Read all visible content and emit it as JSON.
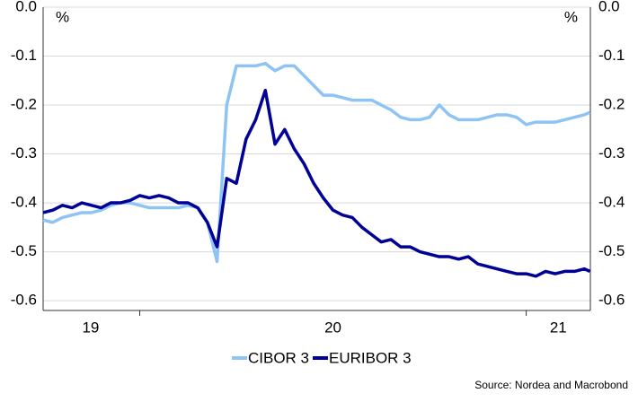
{
  "chart_data": {
    "type": "line",
    "y_unit_label": "%",
    "y2_unit_label": "%",
    "source": "Source: Nordea and Macrobond",
    "xlim": [
      19.75,
      21.166
    ],
    "xticks": [
      20,
      21
    ],
    "xtick_labels": [
      {
        "value": 19.873,
        "label": "19"
      },
      {
        "value": 20.5,
        "label": "20"
      },
      {
        "value": 21.083,
        "label": "21"
      }
    ],
    "ylim": [
      -0.62,
      0
    ],
    "yticks": [
      {
        "value": 0,
        "label": "0.0"
      },
      -0.1,
      -0.2,
      -0.3,
      -0.4,
      -0.5,
      -0.6
    ],
    "y2lim": [
      -0.62,
      0
    ],
    "y2ticks": [
      {
        "value": 0,
        "label": "0.0"
      },
      -0.1,
      -0.2,
      -0.3,
      -0.4,
      -0.5,
      -0.6
    ],
    "grid": true,
    "legend": "bottom",
    "x": [
      19.75,
      19.775,
      19.8,
      19.825,
      19.85,
      19.875,
      19.9,
      19.925,
      19.95,
      19.975,
      20.0,
      20.025,
      20.05,
      20.075,
      20.1,
      20.125,
      20.15,
      20.175,
      20.2,
      20.225,
      20.25,
      20.275,
      20.3,
      20.325,
      20.35,
      20.375,
      20.4,
      20.425,
      20.45,
      20.475,
      20.5,
      20.525,
      20.55,
      20.575,
      20.6,
      20.625,
      20.65,
      20.675,
      20.7,
      20.725,
      20.75,
      20.775,
      20.8,
      20.825,
      20.85,
      20.875,
      20.9,
      20.925,
      20.95,
      20.975,
      21.0,
      21.025,
      21.05,
      21.075,
      21.1,
      21.125,
      21.15,
      21.165
    ],
    "series": [
      {
        "name": "CIBOR 3",
        "color": "#8ec4f4",
        "values": [
          -0.435,
          -0.44,
          -0.43,
          -0.425,
          -0.42,
          -0.42,
          -0.415,
          -0.405,
          -0.4,
          -0.4,
          -0.405,
          -0.41,
          -0.41,
          -0.41,
          -0.41,
          -0.405,
          -0.41,
          -0.44,
          -0.52,
          -0.2,
          -0.12,
          -0.12,
          -0.12,
          -0.115,
          -0.13,
          -0.12,
          -0.12,
          -0.14,
          -0.16,
          -0.18,
          -0.18,
          -0.185,
          -0.19,
          -0.19,
          -0.19,
          -0.2,
          -0.21,
          -0.225,
          -0.23,
          -0.23,
          -0.225,
          -0.2,
          -0.22,
          -0.23,
          -0.23,
          -0.23,
          -0.225,
          -0.22,
          -0.22,
          -0.225,
          -0.24,
          -0.235,
          -0.235,
          -0.235,
          -0.23,
          -0.225,
          -0.22,
          -0.215
        ]
      },
      {
        "name": "EURIBOR 3",
        "color": "#000096",
        "values": [
          -0.42,
          -0.415,
          -0.405,
          -0.41,
          -0.4,
          -0.405,
          -0.41,
          -0.4,
          -0.4,
          -0.395,
          -0.385,
          -0.39,
          -0.385,
          -0.39,
          -0.4,
          -0.4,
          -0.41,
          -0.44,
          -0.49,
          -0.35,
          -0.36,
          -0.27,
          -0.23,
          -0.17,
          -0.28,
          -0.25,
          -0.29,
          -0.32,
          -0.36,
          -0.39,
          -0.415,
          -0.425,
          -0.43,
          -0.45,
          -0.465,
          -0.48,
          -0.475,
          -0.49,
          -0.49,
          -0.5,
          -0.505,
          -0.51,
          -0.51,
          -0.515,
          -0.51,
          -0.525,
          -0.53,
          -0.535,
          -0.54,
          -0.545,
          -0.545,
          -0.55,
          -0.54,
          -0.545,
          -0.54,
          -0.54,
          -0.535,
          -0.54
        ]
      }
    ]
  }
}
